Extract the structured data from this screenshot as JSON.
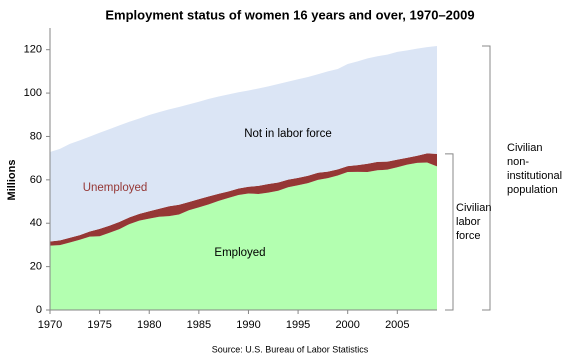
{
  "chart_data": {
    "type": "stacked-area",
    "title": "Employment status of women 16 years and over, 1970–2009",
    "y_label": "Millions",
    "source": "Source: U.S. Bureau of Labor Statistics",
    "x": [
      1970,
      1971,
      1972,
      1973,
      1974,
      1975,
      1976,
      1977,
      1978,
      1979,
      1980,
      1981,
      1982,
      1983,
      1984,
      1985,
      1986,
      1987,
      1988,
      1989,
      1990,
      1991,
      1992,
      1993,
      1994,
      1995,
      1996,
      1997,
      1998,
      1999,
      2000,
      2001,
      2002,
      2003,
      2004,
      2005,
      2006,
      2007,
      2008,
      2009
    ],
    "series": [
      {
        "name": "Employed",
        "color": "#b3ffb0",
        "values": [
          29.7,
          29.9,
          31.1,
          32.4,
          33.8,
          34.0,
          35.6,
          37.3,
          39.6,
          41.2,
          42.1,
          43.0,
          43.3,
          44.0,
          46.0,
          47.3,
          48.7,
          50.3,
          51.7,
          53.0,
          53.7,
          53.5,
          54.1,
          55.0,
          56.6,
          57.5,
          58.5,
          60.0,
          60.8,
          62.0,
          63.6,
          63.7,
          63.6,
          64.4,
          64.7,
          65.8,
          67.0,
          67.8,
          68.0,
          66.2
        ]
      },
      {
        "name": "Unemployed",
        "color": "#953735",
        "values": [
          1.85,
          2.2,
          2.2,
          2.1,
          2.4,
          3.4,
          3.3,
          3.3,
          3.1,
          3.1,
          3.4,
          3.7,
          4.5,
          4.5,
          3.8,
          3.8,
          3.7,
          3.3,
          3.0,
          3.0,
          3.1,
          3.7,
          4.0,
          3.8,
          3.5,
          3.4,
          3.4,
          3.3,
          3.0,
          2.8,
          2.7,
          3.1,
          3.8,
          3.9,
          3.7,
          3.5,
          3.2,
          3.3,
          4.2,
          5.8
        ]
      },
      {
        "name": "Not in labor force",
        "color": "#dbe5f5",
        "values": [
          41.3,
          42.2,
          43.3,
          43.7,
          43.7,
          44.3,
          44.5,
          44.5,
          44.1,
          44.0,
          44.4,
          44.5,
          44.7,
          45.1,
          45.0,
          44.9,
          44.9,
          44.8,
          44.7,
          44.4,
          44.4,
          44.9,
          45.0,
          45.4,
          45.2,
          45.5,
          45.5,
          45.4,
          46.2,
          46.3,
          47.1,
          47.8,
          48.6,
          48.7,
          49.3,
          49.7,
          49.5,
          49.4,
          49.0,
          49.7
        ]
      }
    ],
    "labor_force_label": [
      "Civilian",
      "labor",
      "force"
    ],
    "population_label": [
      "Civilian",
      "non-",
      "institutional",
      "population"
    ],
    "xlim": [
      1970,
      2009
    ],
    "xticks": [
      1970,
      1975,
      1980,
      1985,
      1990,
      1995,
      2000,
      2005
    ],
    "ylim": [
      0,
      130
    ],
    "yticks": [
      0,
      20,
      40,
      60,
      80,
      100,
      120
    ]
  }
}
